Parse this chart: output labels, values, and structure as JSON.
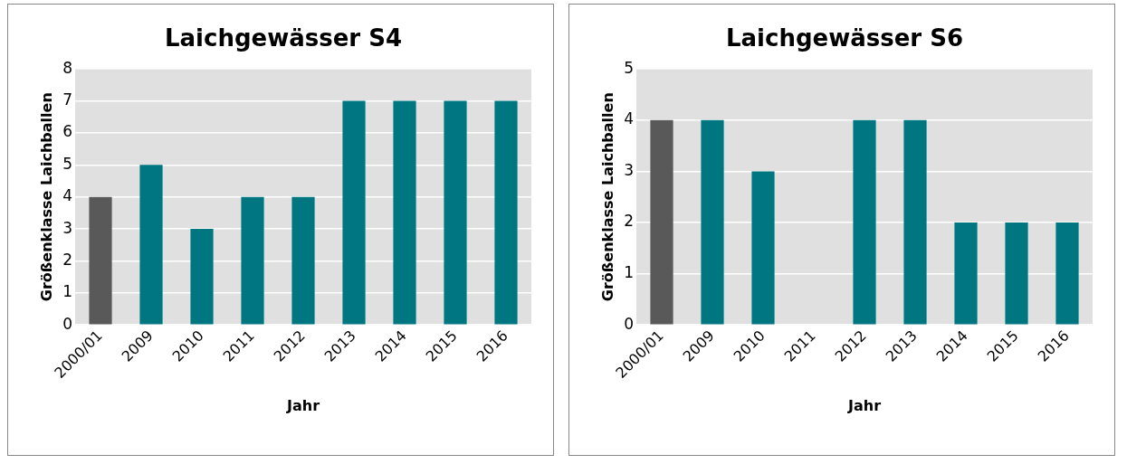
{
  "chart_data": [
    {
      "type": "bar",
      "title": "Laichgewässer S4",
      "xlabel": "Jahr",
      "ylabel": "Größenklasse Laichballen",
      "categories": [
        "2000/01",
        "2009",
        "2010",
        "2011",
        "2012",
        "2013",
        "2014",
        "2015",
        "2016"
      ],
      "values": [
        4,
        5,
        3,
        4,
        4,
        7,
        7,
        7,
        7
      ],
      "colors": [
        "#595959",
        "#007780",
        "#007780",
        "#007780",
        "#007780",
        "#007780",
        "#007780",
        "#007780",
        "#007780"
      ],
      "ylim": [
        0,
        8
      ],
      "yticks": [
        0,
        1,
        2,
        3,
        4,
        5,
        6,
        7,
        8
      ],
      "grid": "y",
      "legend": false
    },
    {
      "type": "bar",
      "title": "Laichgewässer S6",
      "xlabel": "Jahr",
      "ylabel": "Größenklasse Laichballen",
      "categories": [
        "2000/01",
        "2009",
        "2010",
        "2011",
        "2012",
        "2013",
        "2014",
        "2015",
        "2016"
      ],
      "values": [
        4,
        4,
        3,
        null,
        4,
        4,
        2,
        2,
        2
      ],
      "colors": [
        "#595959",
        "#007780",
        "#007780",
        "#007780",
        "#007780",
        "#007780",
        "#007780",
        "#007780",
        "#007780"
      ],
      "ylim": [
        0,
        5
      ],
      "yticks": [
        0,
        1,
        2,
        3,
        4,
        5
      ],
      "grid": "y",
      "legend": false
    }
  ]
}
